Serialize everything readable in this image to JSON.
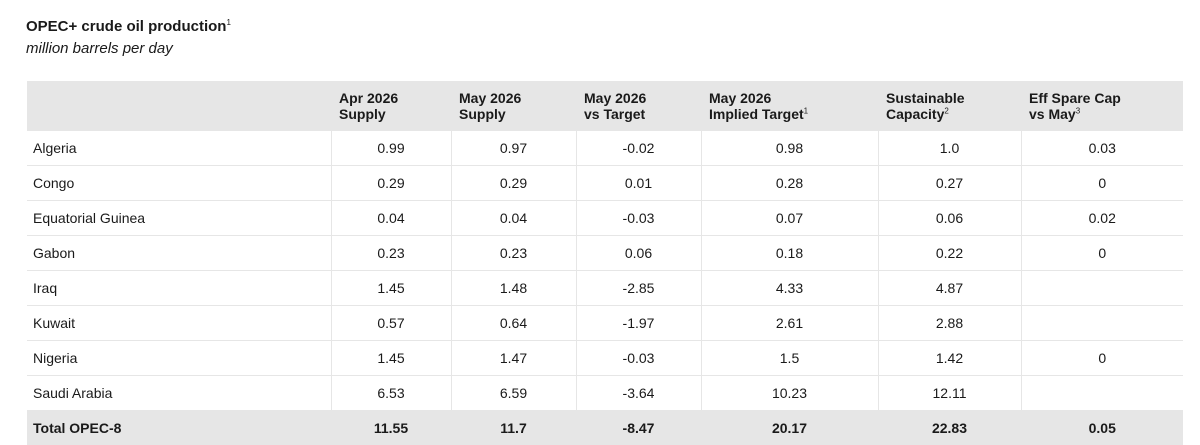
{
  "header": {
    "title": "OPEC+ crude oil production",
    "title_note": "1",
    "subtitle": "million barrels per day"
  },
  "table": {
    "columns": [
      {
        "lines": [],
        "note": null
      },
      {
        "lines": [
          "Apr 2026",
          "Supply"
        ],
        "note": null
      },
      {
        "lines": [
          "May 2026",
          "Supply"
        ],
        "note": null
      },
      {
        "lines": [
          "May 2026",
          "vs Target"
        ],
        "note": null
      },
      {
        "lines": [
          "May 2026",
          "Implied Target"
        ],
        "note": "1"
      },
      {
        "lines": [
          "Sustainable",
          "Capacity"
        ],
        "note": "2"
      },
      {
        "lines": [
          "Eff Spare Cap",
          "vs May"
        ],
        "note": "3"
      }
    ],
    "rows": [
      [
        "Algeria",
        "0.99",
        "0.97",
        "-0.02",
        "0.98",
        "1.0",
        "0.03"
      ],
      [
        "Congo",
        "0.29",
        "0.29",
        "0.01",
        "0.28",
        "0.27",
        "0"
      ],
      [
        "Equatorial Guinea",
        "0.04",
        "0.04",
        "-0.03",
        "0.07",
        "0.06",
        "0.02"
      ],
      [
        "Gabon",
        "0.23",
        "0.23",
        "0.06",
        "0.18",
        "0.22",
        "0"
      ],
      [
        "Iraq",
        "1.45",
        "1.48",
        "-2.85",
        "4.33",
        "4.87",
        null
      ],
      [
        "Kuwait",
        "0.57",
        "0.64",
        "-1.97",
        "2.61",
        "2.88",
        null
      ],
      [
        "Nigeria",
        "1.45",
        "1.47",
        "-0.03",
        "1.5",
        "1.42",
        "0"
      ],
      [
        "Saudi Arabia",
        "6.53",
        "6.59",
        "-3.64",
        "10.23",
        "12.11",
        null
      ]
    ],
    "total": [
      "Total OPEC-8",
      "11.55",
      "11.7",
      "-8.47",
      "20.17",
      "22.83",
      "0.05"
    ]
  }
}
